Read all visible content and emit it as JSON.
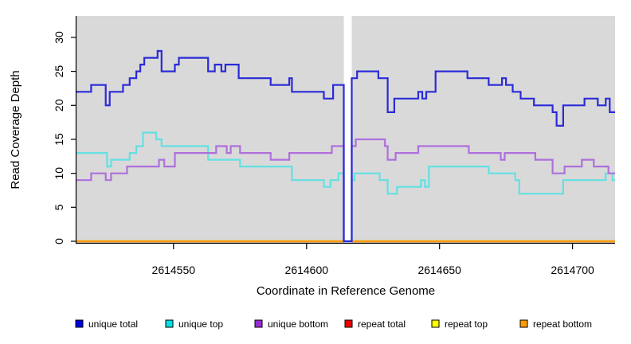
{
  "chart_data": {
    "type": "line",
    "style": "step",
    "title": "",
    "xlabel": "Coordinate in Reference Genome",
    "ylabel": "Read Coverage Depth",
    "xlim": [
      2614513.5,
      2614716
    ],
    "ylim": [
      0,
      33.2
    ],
    "x_ticks": [
      2614550,
      2614600,
      2614650,
      2614700
    ],
    "y_ticks": [
      0,
      5,
      10,
      15,
      20,
      25,
      30
    ],
    "grid": false,
    "plot_background": "#d9d9d9",
    "gap_region": {
      "from": 2614614,
      "to": 2614617,
      "color": "#ffffff",
      "note": "white masked strip where all unique coverage drops to 0"
    },
    "legend_position": "bottom",
    "series": [
      {
        "name": "unique total",
        "legend_color": "#0000e0",
        "line_color": "#2a2ad8",
        "values": [
          [
            2614513.5,
            22
          ],
          [
            2614519,
            23
          ],
          [
            2614524.5,
            20
          ],
          [
            2614526,
            22
          ],
          [
            2614531,
            23
          ],
          [
            2614533.5,
            24
          ],
          [
            2614536,
            25
          ],
          [
            2614537.5,
            26
          ],
          [
            2614539,
            27
          ],
          [
            2614544,
            28
          ],
          [
            2614545.5,
            25
          ],
          [
            2614550.5,
            26
          ],
          [
            2614552,
            27
          ],
          [
            2614563,
            25
          ],
          [
            2614565.5,
            26
          ],
          [
            2614568,
            25
          ],
          [
            2614569.5,
            26
          ],
          [
            2614574.5,
            24
          ],
          [
            2614586.5,
            23
          ],
          [
            2614593.5,
            24
          ],
          [
            2614594.5,
            22
          ],
          [
            2614606.5,
            21
          ],
          [
            2614610,
            23
          ],
          [
            2614614,
            0
          ],
          [
            2614617,
            24
          ],
          [
            2614619,
            25
          ],
          [
            2614627,
            24
          ],
          [
            2614630.5,
            19
          ],
          [
            2614633,
            21
          ],
          [
            2614642,
            22
          ],
          [
            2614643.5,
            21
          ],
          [
            2614645,
            22
          ],
          [
            2614648.5,
            25
          ],
          [
            2614660.5,
            24
          ],
          [
            2614668.5,
            23
          ],
          [
            2614673.5,
            24
          ],
          [
            2614675,
            23
          ],
          [
            2614677.5,
            22
          ],
          [
            2614680.5,
            21
          ],
          [
            2614685.5,
            20
          ],
          [
            2614692.5,
            19
          ],
          [
            2614694,
            17
          ],
          [
            2614696.5,
            20
          ],
          [
            2614704.5,
            21
          ],
          [
            2614709.5,
            20
          ],
          [
            2614712.5,
            21
          ],
          [
            2614714,
            19
          ],
          [
            2614716,
            19
          ]
        ]
      },
      {
        "name": "unique top",
        "legend_color": "#00e0e6",
        "line_color": "#63e0e2",
        "values": [
          [
            2614513.5,
            13
          ],
          [
            2614525,
            11
          ],
          [
            2614526.5,
            12
          ],
          [
            2614533.5,
            13
          ],
          [
            2614536,
            14
          ],
          [
            2614538.5,
            16
          ],
          [
            2614543.5,
            15
          ],
          [
            2614545.5,
            14
          ],
          [
            2614563,
            12
          ],
          [
            2614575,
            11
          ],
          [
            2614594.5,
            9
          ],
          [
            2614606.5,
            8
          ],
          [
            2614609,
            9
          ],
          [
            2614612,
            10
          ],
          [
            2614614,
            0
          ],
          [
            2614617,
            9
          ],
          [
            2614618,
            10
          ],
          [
            2614627.5,
            9
          ],
          [
            2614630.5,
            7
          ],
          [
            2614634,
            8
          ],
          [
            2614643,
            9
          ],
          [
            2614644.5,
            8
          ],
          [
            2614646,
            11
          ],
          [
            2614668.5,
            10
          ],
          [
            2614678.5,
            9
          ],
          [
            2614680,
            7
          ],
          [
            2614696.5,
            9
          ],
          [
            2614712.5,
            10
          ],
          [
            2614715,
            9
          ],
          [
            2614716,
            9
          ]
        ]
      },
      {
        "name": "unique bottom",
        "legend_color": "#9b2bd6",
        "line_color": "#ae70dc",
        "values": [
          [
            2614513.5,
            9
          ],
          [
            2614519,
            10
          ],
          [
            2614524.5,
            9
          ],
          [
            2614526.5,
            10
          ],
          [
            2614532.5,
            11
          ],
          [
            2614544.5,
            12
          ],
          [
            2614546.5,
            11
          ],
          [
            2614550.5,
            13
          ],
          [
            2614566,
            14
          ],
          [
            2614570,
            13
          ],
          [
            2614571.5,
            14
          ],
          [
            2614575,
            13
          ],
          [
            2614586.5,
            12
          ],
          [
            2614593.5,
            13
          ],
          [
            2614609.5,
            14
          ],
          [
            2614614,
            0
          ],
          [
            2614617,
            14
          ],
          [
            2614618.5,
            15
          ],
          [
            2614629.5,
            14
          ],
          [
            2614630.5,
            12
          ],
          [
            2614633.5,
            13
          ],
          [
            2614642,
            14
          ],
          [
            2614661,
            13
          ],
          [
            2614673,
            12
          ],
          [
            2614674.5,
            13
          ],
          [
            2614686,
            12
          ],
          [
            2614692.5,
            10
          ],
          [
            2614697,
            11
          ],
          [
            2614703.5,
            12
          ],
          [
            2614708,
            11
          ],
          [
            2614713.5,
            10
          ],
          [
            2614716,
            10
          ]
        ]
      },
      {
        "name": "repeat total",
        "legend_color": "#ee0000",
        "line_color": "#ee0000",
        "values": [
          [
            2614513.5,
            0
          ],
          [
            2614716,
            0
          ]
        ]
      },
      {
        "name": "repeat top",
        "legend_color": "#ffff00",
        "line_color": "#ffff00",
        "values": [
          [
            2614513.5,
            0
          ],
          [
            2614716,
            0
          ]
        ]
      },
      {
        "name": "repeat bottom",
        "legend_color": "#ff9d00",
        "line_color": "#ff9d00",
        "values": [
          [
            2614513.5,
            0
          ],
          [
            2614716,
            0
          ]
        ]
      }
    ]
  },
  "legend": {
    "items": [
      {
        "label": "unique total",
        "color": "#0000e0"
      },
      {
        "label": "unique top",
        "color": "#00e0e6"
      },
      {
        "label": "unique bottom",
        "color": "#9b2bd6"
      },
      {
        "label": "repeat total",
        "color": "#ee0000"
      },
      {
        "label": "repeat top",
        "color": "#ffff00"
      },
      {
        "label": "repeat bottom",
        "color": "#ff9d00"
      }
    ]
  }
}
